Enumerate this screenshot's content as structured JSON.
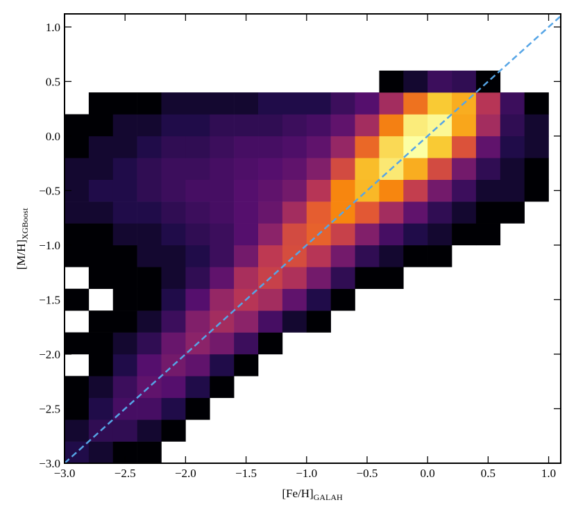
{
  "chart_data": {
    "type": "hist2d",
    "x_label": "[Fe/H]",
    "x_label_sub": "GALAH",
    "y_label": "[M/H]",
    "y_label_sub": "XGBoost",
    "xlim": [
      -3.0,
      1.1
    ],
    "ylim": [
      -3.0,
      1.12
    ],
    "xticks": [
      {
        "value": -3.0,
        "label": "−3.0"
      },
      {
        "value": -2.5,
        "label": "−2.5"
      },
      {
        "value": -2.0,
        "label": "−2.0"
      },
      {
        "value": -1.5,
        "label": "−1.5"
      },
      {
        "value": -1.0,
        "label": "−1.0"
      },
      {
        "value": -0.5,
        "label": "−0.5"
      },
      {
        "value": 0.0,
        "label": "0.0"
      },
      0.5,
      {
        "value": 1.0,
        "label": "1.0"
      }
    ],
    "yticks": [
      {
        "value": -3.0,
        "label": "−3.0"
      },
      {
        "value": -2.5,
        "label": "−2.5"
      },
      {
        "value": -2.0,
        "label": "−2.0"
      },
      {
        "value": -1.5,
        "label": "−1.5"
      },
      {
        "value": -1.0,
        "label": "−1.0"
      },
      {
        "value": -0.5,
        "label": "−0.5"
      },
      {
        "value": 0.0,
        "label": "0.0"
      },
      0.5,
      {
        "value": 1.0,
        "label": "1.0"
      }
    ],
    "x_bins": [
      -3.0,
      -2.8,
      -2.6,
      -2.4,
      -2.2,
      -2.0,
      -1.8,
      -1.6,
      -1.4,
      -1.2,
      -1.0,
      -0.8,
      -0.6,
      -0.4,
      -0.2,
      0.0,
      0.2,
      0.4,
      0.6,
      0.8,
      1.0
    ],
    "y_bins": [
      -3.0,
      -2.8,
      -2.6,
      -2.4,
      -2.2,
      -2.0,
      -1.8,
      -1.6,
      -1.4,
      -1.2,
      -1.0,
      -0.8,
      -0.6,
      -0.4,
      -0.2,
      0.0,
      0.2,
      0.4,
      0.6,
      0.8,
      1.0
    ],
    "norm": "log",
    "cmap": "inferno",
    "counts": [
      [
        3,
        2,
        1,
        1,
        0,
        0,
        0,
        0,
        0,
        0,
        0,
        0,
        0,
        0,
        0,
        0,
        0,
        0,
        0,
        0
      ],
      [
        2,
        4,
        4,
        2,
        1,
        0,
        0,
        0,
        0,
        0,
        0,
        0,
        0,
        0,
        0,
        0,
        0,
        0,
        0,
        0
      ],
      [
        1,
        3,
        6,
        6,
        3,
        1,
        0,
        0,
        0,
        0,
        0,
        0,
        0,
        0,
        0,
        0,
        0,
        0,
        0,
        0
      ],
      [
        1,
        2,
        5,
        10,
        8,
        3,
        1,
        0,
        0,
        0,
        0,
        0,
        0,
        0,
        0,
        0,
        0,
        0,
        0,
        0
      ],
      [
        0,
        1,
        3,
        8,
        15,
        10,
        3,
        1,
        0,
        0,
        0,
        0,
        0,
        0,
        0,
        0,
        0,
        0,
        0,
        0
      ],
      [
        1,
        1,
        2,
        4,
        12,
        25,
        15,
        5,
        1,
        0,
        0,
        0,
        0,
        0,
        0,
        0,
        0,
        0,
        0,
        0
      ],
      [
        0,
        1,
        1,
        2,
        5,
        20,
        40,
        25,
        6,
        2,
        1,
        0,
        0,
        0,
        0,
        0,
        0,
        0,
        0,
        0
      ],
      [
        1,
        0,
        1,
        1,
        3,
        8,
        30,
        60,
        40,
        10,
        3,
        1,
        0,
        0,
        0,
        0,
        0,
        0,
        0,
        0
      ],
      [
        0,
        1,
        1,
        1,
        2,
        4,
        10,
        45,
        90,
        50,
        15,
        4,
        1,
        1,
        0,
        0,
        0,
        0,
        0,
        0
      ],
      [
        1,
        1,
        1,
        2,
        2,
        3,
        5,
        15,
        70,
        130,
        60,
        15,
        4,
        2,
        1,
        1,
        0,
        0,
        0,
        0
      ],
      [
        1,
        1,
        2,
        2,
        3,
        4,
        5,
        8,
        25,
        120,
        220,
        90,
        20,
        6,
        3,
        2,
        1,
        1,
        0,
        0
      ],
      [
        2,
        2,
        3,
        3,
        4,
        5,
        6,
        8,
        12,
        40,
        200,
        450,
        180,
        40,
        10,
        4,
        2,
        1,
        1,
        0
      ],
      [
        2,
        3,
        3,
        4,
        5,
        6,
        6,
        8,
        10,
        15,
        60,
        450,
        1100,
        450,
        80,
        15,
        5,
        2,
        2,
        1
      ],
      [
        2,
        2,
        3,
        4,
        5,
        5,
        6,
        7,
        8,
        10,
        20,
        120,
        1200,
        2600,
        900,
        120,
        15,
        4,
        2,
        1
      ],
      [
        1,
        2,
        2,
        3,
        4,
        4,
        5,
        6,
        6,
        7,
        10,
        30,
        250,
        2000,
        4000,
        1500,
        150,
        10,
        3,
        2
      ],
      [
        1,
        1,
        2,
        2,
        3,
        3,
        4,
        4,
        4,
        5,
        6,
        10,
        40,
        400,
        2800,
        3500,
        800,
        40,
        4,
        2
      ],
      [
        0,
        1,
        1,
        1,
        2,
        2,
        2,
        2,
        3,
        3,
        3,
        5,
        8,
        40,
        300,
        1500,
        900,
        60,
        5,
        1
      ],
      [
        0,
        0,
        0,
        0,
        0,
        0,
        0,
        0,
        0,
        0,
        0,
        0,
        0,
        1,
        2,
        5,
        4,
        1,
        0,
        0
      ],
      [
        0,
        0,
        0,
        0,
        0,
        0,
        0,
        0,
        0,
        0,
        0,
        0,
        0,
        0,
        0,
        0,
        0,
        0,
        0,
        0
      ],
      [
        0,
        0,
        0,
        0,
        0,
        0,
        0,
        0,
        0,
        0,
        0,
        0,
        0,
        0,
        0,
        0,
        0,
        0,
        0,
        0
      ]
    ],
    "reference_line": {
      "x": [
        -3.0,
        1.1
      ],
      "y": [
        -3.0,
        1.1
      ],
      "color": "#56a5e6",
      "style": "dashed"
    }
  }
}
